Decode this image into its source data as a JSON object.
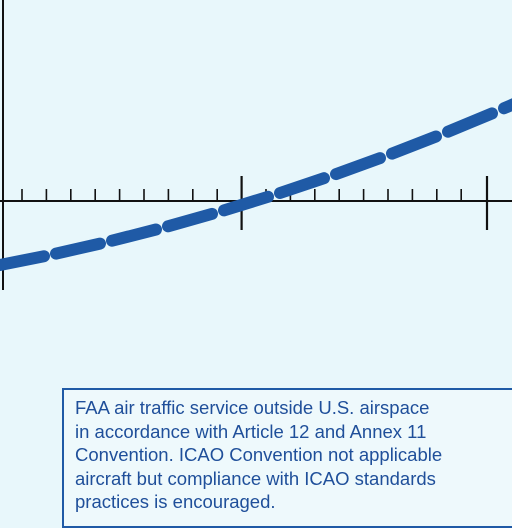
{
  "map": {
    "background_color": "#e8f7fb",
    "route_color": "#1f5aa6",
    "grid_color": "#111111",
    "route_style": "dashed",
    "note": {
      "lines": [
        "FAA air traffic service outside U.S. airspace",
        "in accordance with Article 12 and Annex 11",
        "Convention. ICAO Convention not applicable",
        "aircraft but compliance with ICAO standards",
        "practices is encouraged."
      ]
    }
  }
}
